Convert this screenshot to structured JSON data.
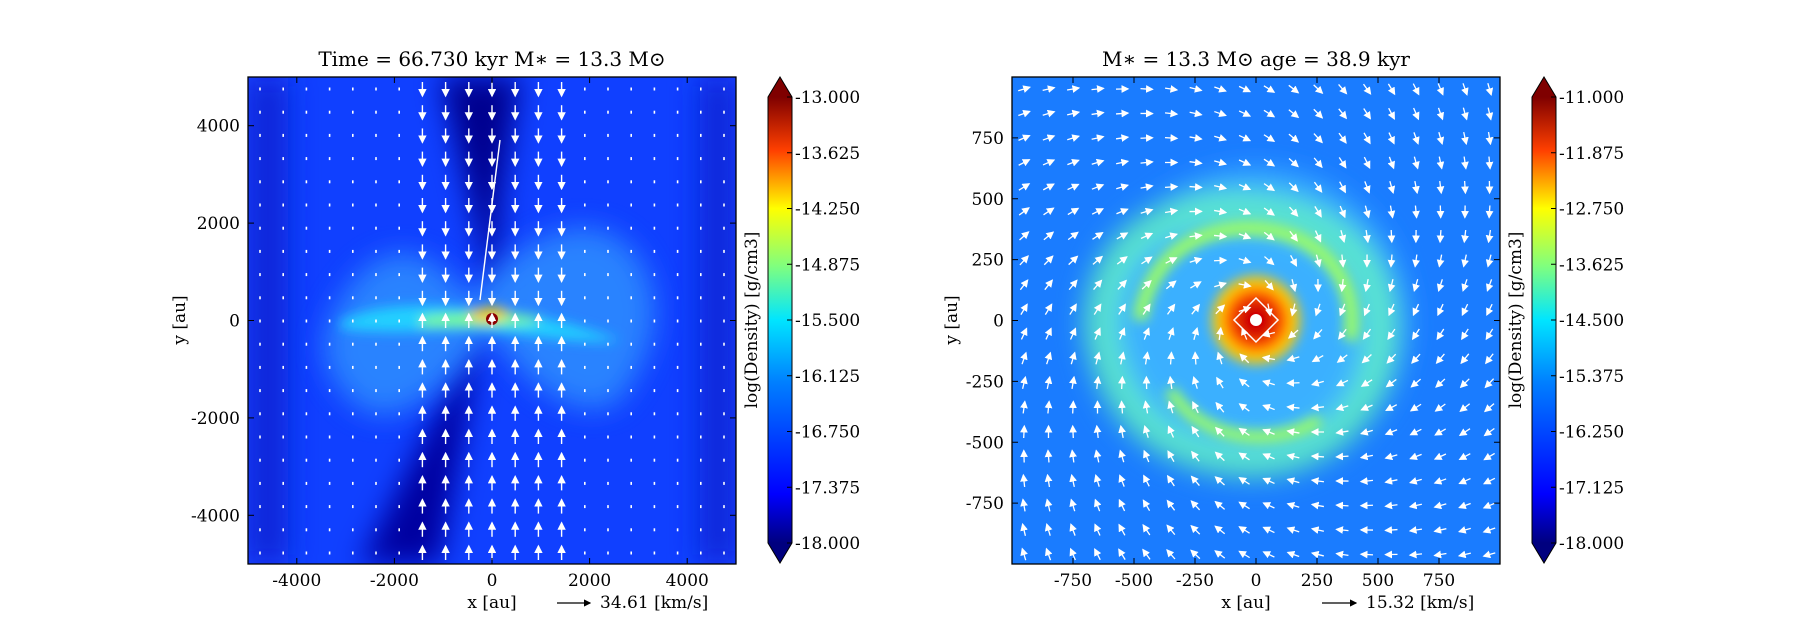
{
  "chart_data": [
    {
      "type": "heatmap",
      "title": "Time = 66.730 kyr    M∗ = 13.3 M⊙",
      "xlabel": "x [au]",
      "ylabel": "y [au]",
      "xlim": [
        -5000,
        5000
      ],
      "ylim": [
        -5000,
        5000
      ],
      "xticks": [
        -4000,
        -2000,
        0,
        2000,
        4000
      ],
      "yticks": [
        -4000,
        -2000,
        0,
        2000,
        4000
      ],
      "arrow_legend": "34.61 [km/s]",
      "colorbar": {
        "label": "log(Density) [g/cm3]",
        "min": -18.0,
        "max": -13.0,
        "ticks": [
          "-13.000",
          "-13.625",
          "-14.250",
          "-14.875",
          "-15.500",
          "-16.125",
          "-16.750",
          "-17.375",
          "-18.000"
        ]
      },
      "grid": false
    },
    {
      "type": "heatmap",
      "title": "M∗ = 13.3 M⊙           age = 38.9 kyr",
      "xlabel": "x [au]",
      "ylabel": "y [au]",
      "xlim": [
        -1000,
        1000
      ],
      "ylim": [
        -1000,
        1000
      ],
      "xticks": [
        -750,
        -500,
        -250,
        0,
        250,
        500,
        750
      ],
      "yticks": [
        -750,
        -500,
        -250,
        0,
        250,
        500,
        750
      ],
      "arrow_legend": "15.32 [km/s]",
      "colorbar": {
        "label": "log(Density) [g/cm3]",
        "min": -18.0,
        "max": -11.0,
        "ticks": [
          "-11.000",
          "-11.875",
          "-12.750",
          "-13.625",
          "-14.500",
          "-15.375",
          "-16.250",
          "-17.125",
          "-18.000"
        ]
      },
      "grid": false
    }
  ],
  "colors": {
    "cmap": [
      "#00007f",
      "#0000ff",
      "#007fff",
      "#00ffff",
      "#7fff7f",
      "#ffff00",
      "#ff7f00",
      "#ff0000",
      "#7f0000"
    ],
    "arrows": "#ffffff"
  }
}
